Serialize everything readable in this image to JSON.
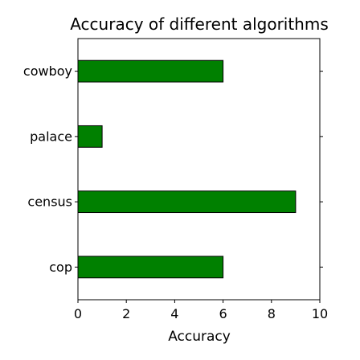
{
  "chart_data": {
    "type": "bar",
    "orientation": "horizontal",
    "title": "Accuracy of different algorithms",
    "xlabel": "Accuracy",
    "ylabel": "",
    "categories": [
      "cowboy",
      "palace",
      "census",
      "cop"
    ],
    "values": [
      6,
      1,
      9,
      6
    ],
    "xlim": [
      0,
      10
    ],
    "xticks": [
      0,
      2,
      4,
      6,
      8,
      10
    ],
    "grid": false,
    "legend": "none",
    "bar_color": "#008000",
    "bar_edge_color": "#000000"
  }
}
